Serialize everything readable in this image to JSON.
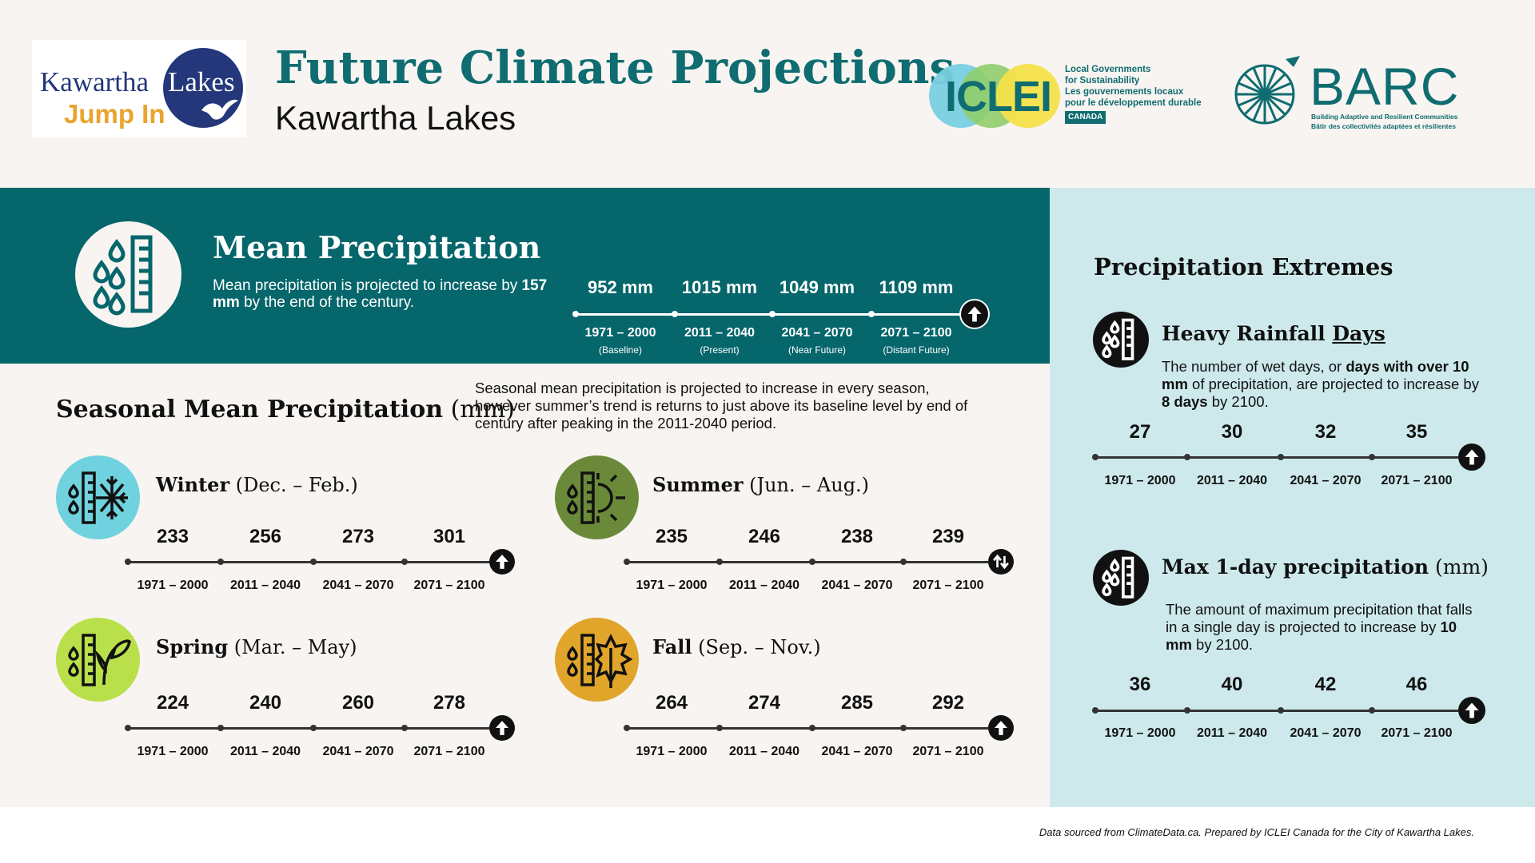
{
  "header": {
    "title": "Future Climate Projections",
    "subtitle": "Kawartha Lakes",
    "kl_logo": {
      "word1": "Kawartha",
      "word2": "Lakes",
      "tagline": "Jump In"
    },
    "iclei_logo": {
      "word": "ICLEI",
      "line1": "Local Governments",
      "line2": "for Sustainability",
      "line3": "Les gouvernements locaux",
      "line4": "pour le développement durable",
      "badge": "CANADA"
    },
    "barc_logo": {
      "word": "BARC",
      "tag1": "Building Adaptive and Resilient Communities",
      "tag2": "Bâtir des collectivités adaptées et résilientes"
    }
  },
  "mean": {
    "title": "Mean Precipitation",
    "desc_pre": "Mean precipitation is projected to increase by ",
    "desc_bold": "157 mm",
    "desc_post": " by the end of the century.",
    "values": [
      "952 mm",
      "1015 mm",
      "1049 mm",
      "1109 mm"
    ],
    "periods": [
      "1971 – 2000",
      "2011 – 2040",
      "2041 – 2070",
      "2071 – 2100"
    ],
    "subs": [
      "(Baseline)",
      "(Present)",
      "(Near Future)",
      "(Distant Future)"
    ]
  },
  "seasonal": {
    "title_bold": "Seasonal Mean Precipitation",
    "title_unit": " (mm)",
    "desc": "Seasonal mean precipitation is projected to increase in every season, however summer’s trend is returns to just above its baseline level by end of century after peaking in the 2011-2040 period.",
    "periods": [
      "1971 – 2000",
      "2011 – 2040",
      "2041 – 2070",
      "2071 – 2100"
    ],
    "seasons": [
      {
        "id": "winter",
        "name": "Winter",
        "range": " (Dec. – Feb.)",
        "values": [
          "233",
          "256",
          "273",
          "301"
        ],
        "color": "#6fd2de",
        "trend": "up"
      },
      {
        "id": "summer",
        "name": "Summer",
        "range": " (Jun. – Aug.)",
        "values": [
          "235",
          "246",
          "238",
          "239"
        ],
        "color": "#6a8a3a",
        "trend": "mixed"
      },
      {
        "id": "spring",
        "name": "Spring",
        "range": " (Mar. – May)",
        "values": [
          "224",
          "240",
          "260",
          "278"
        ],
        "color": "#b9e04a",
        "trend": "up"
      },
      {
        "id": "fall",
        "name": "Fall",
        "range": " (Sep. – Nov.)",
        "values": [
          "264",
          "274",
          "285",
          "292"
        ],
        "color": "#e0a52a",
        "trend": "up"
      }
    ]
  },
  "extremes": {
    "title": "Precipitation Extremes",
    "heavy": {
      "title_pre": "Heavy Rainfall ",
      "title_u": "Days",
      "desc_1": "The number of wet days, or ",
      "desc_b1": "days with over 10 mm",
      "desc_2": " of precipitation, are projected to increase by ",
      "desc_b2": "8 days",
      "desc_3": " by 2100.",
      "values": [
        "27",
        "30",
        "32",
        "35"
      ]
    },
    "max1day": {
      "title_bold": "Max 1-day precipitation",
      "title_unit": " (mm)",
      "desc_1": "The amount of maximum precipitation that falls in a single day is projected to increase by ",
      "desc_b": "10 mm",
      "desc_2": " by 2100.",
      "values": [
        "36",
        "40",
        "42",
        "46"
      ]
    },
    "periods": [
      "1971 – 2000",
      "2011 – 2040",
      "2041 – 2070",
      "2071 – 2100"
    ]
  },
  "footer": {
    "note": "Data sourced from ClimateData.ca. Prepared by ICLEI Canada for the City of Kawartha Lakes."
  },
  "colors": {
    "teal": "#05666b",
    "title_teal": "#0f6c70",
    "panel_light_blue": "#cde9ec",
    "background": "#f7f4f1"
  },
  "icons": {
    "mean": "rain-gauge-icon",
    "winter": "snowflake-gauge-icon",
    "summer": "sun-gauge-icon",
    "spring": "plant-gauge-icon",
    "fall": "leaf-gauge-icon",
    "extremes": "rain-gauge-icon",
    "trend_up": "arrow-up-icon",
    "trend_mixed": "arrow-up-down-icon"
  }
}
